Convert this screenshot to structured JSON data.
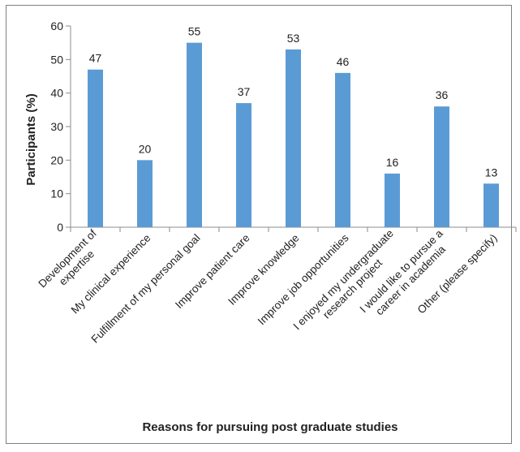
{
  "chart_data": {
    "type": "bar",
    "title": "",
    "xlabel": "Reasons for pursuing post graduate studies",
    "ylabel": "Participants (%)",
    "ylim": [
      0,
      60
    ],
    "yticks": [
      0,
      10,
      20,
      30,
      40,
      50,
      60
    ],
    "grid": false,
    "legend": "none",
    "bar_color": "#5b9bd5",
    "categories": [
      [
        "Development of",
        "expertise"
      ],
      [
        "My clinical experience"
      ],
      [
        "Fulfillment of my personal goal"
      ],
      [
        "Improve patient care"
      ],
      [
        "Improve knowledge"
      ],
      [
        "Improve job opportunities"
      ],
      [
        "I enjoyed my undergraduate",
        "research project"
      ],
      [
        "I would like to pursue a",
        "career in academia"
      ],
      [
        "Other (please specify)"
      ]
    ],
    "values": [
      47,
      20,
      55,
      37,
      53,
      46,
      16,
      36,
      13
    ],
    "data_labels": [
      "47",
      "20",
      "55",
      "37",
      "53",
      "46",
      "16",
      "36",
      "13"
    ]
  }
}
